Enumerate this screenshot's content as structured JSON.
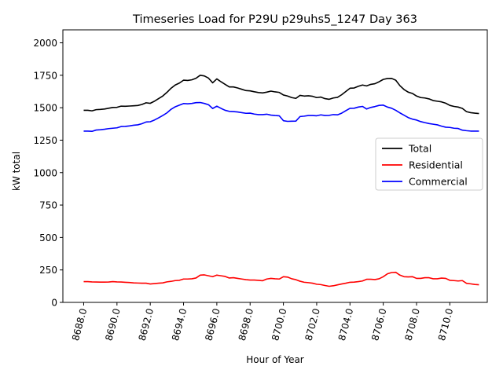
{
  "chart_data": {
    "type": "line",
    "title": "Timeseries Load for P29U p29uhs5_1247  Day 363",
    "xlabel": "Hour of Year",
    "ylabel": "kW total",
    "xlim": [
      8686.75,
      8712.25
    ],
    "ylim": [
      0,
      2100
    ],
    "x_ticks": [
      8688,
      8690,
      8692,
      8694,
      8696,
      8698,
      8700,
      8702,
      8704,
      8706,
      8708,
      8710
    ],
    "x_tick_labels": [
      "8688.0",
      "8690.0",
      "8692.0",
      "8694.0",
      "8696.0",
      "8698.0",
      "8700.0",
      "8702.0",
      "8704.0",
      "8706.0",
      "8708.0",
      "8710.0"
    ],
    "y_ticks": [
      0,
      250,
      500,
      750,
      1000,
      1250,
      1500,
      1750,
      2000
    ],
    "y_tick_labels": [
      "0",
      "250",
      "500",
      "750",
      "1000",
      "1250",
      "1500",
      "1750",
      "2000"
    ],
    "grid": false,
    "legend_position": "center-right",
    "x": [
      8688.0,
      8688.25,
      8688.5,
      8688.75,
      8689.0,
      8689.25,
      8689.5,
      8689.75,
      8690.0,
      8690.25,
      8690.5,
      8690.75,
      8691.0,
      8691.25,
      8691.5,
      8691.75,
      8692.0,
      8692.25,
      8692.5,
      8692.75,
      8693.0,
      8693.25,
      8693.5,
      8693.75,
      8694.0,
      8694.25,
      8694.5,
      8694.75,
      8695.0,
      8695.25,
      8695.5,
      8695.75,
      8696.0,
      8696.25,
      8696.5,
      8696.75,
      8697.0,
      8697.25,
      8697.5,
      8697.75,
      8698.0,
      8698.25,
      8698.5,
      8698.75,
      8699.0,
      8699.25,
      8699.5,
      8699.75,
      8700.0,
      8700.25,
      8700.5,
      8700.75,
      8701.0,
      8701.25,
      8701.5,
      8701.75,
      8702.0,
      8702.25,
      8702.5,
      8702.75,
      8703.0,
      8703.25,
      8703.5,
      8703.75,
      8704.0,
      8704.25,
      8704.5,
      8704.75,
      8705.0,
      8705.25,
      8705.5,
      8705.75,
      8706.0,
      8706.25,
      8706.5,
      8706.75,
      8707.0,
      8707.25,
      8707.5,
      8707.75,
      8708.0,
      8708.25,
      8708.5,
      8708.75,
      8709.0,
      8709.25,
      8709.5,
      8709.75,
      8710.0,
      8710.25,
      8710.5,
      8710.75,
      8711.0,
      8711.25,
      8711.5,
      8711.75
    ],
    "series": [
      {
        "name": "Total",
        "color": "#000000",
        "values": [
          1480,
          1480,
          1476,
          1485,
          1487,
          1490,
          1496,
          1502,
          1503,
          1512,
          1511,
          1513,
          1515,
          1517,
          1525,
          1538,
          1534,
          1550,
          1570,
          1590,
          1618,
          1650,
          1675,
          1690,
          1712,
          1710,
          1715,
          1727,
          1750,
          1745,
          1728,
          1692,
          1722,
          1700,
          1680,
          1660,
          1660,
          1652,
          1642,
          1632,
          1630,
          1623,
          1617,
          1614,
          1620,
          1628,
          1622,
          1618,
          1598,
          1590,
          1578,
          1572,
          1595,
          1590,
          1592,
          1588,
          1578,
          1582,
          1570,
          1565,
          1575,
          1580,
          1600,
          1625,
          1650,
          1652,
          1665,
          1675,
          1668,
          1680,
          1685,
          1700,
          1718,
          1725,
          1726,
          1712,
          1670,
          1640,
          1620,
          1610,
          1590,
          1578,
          1575,
          1568,
          1555,
          1550,
          1545,
          1535,
          1518,
          1510,
          1505,
          1495,
          1470,
          1462,
          1458,
          1455
        ]
      },
      {
        "name": "Residential",
        "color": "#ff0000",
        "values": [
          160,
          160,
          158,
          157,
          156,
          156,
          157,
          160,
          158,
          157,
          155,
          153,
          150,
          149,
          148,
          148,
          142,
          145,
          148,
          150,
          158,
          162,
          168,
          170,
          180,
          180,
          182,
          188,
          210,
          212,
          205,
          198,
          210,
          205,
          200,
          188,
          190,
          185,
          180,
          175,
          172,
          172,
          170,
          167,
          180,
          185,
          182,
          180,
          198,
          195,
          182,
          175,
          163,
          155,
          152,
          148,
          140,
          137,
          130,
          124,
          128,
          135,
          142,
          148,
          155,
          156,
          160,
          165,
          178,
          178,
          176,
          182,
          198,
          220,
          230,
          232,
          210,
          198,
          196,
          198,
          185,
          185,
          190,
          190,
          182,
          182,
          187,
          185,
          170,
          168,
          165,
          168,
          147,
          143,
          138,
          136
        ]
      },
      {
        "name": "Commercial",
        "color": "#0000ff",
        "values": [
          1320,
          1320,
          1318,
          1328,
          1330,
          1334,
          1339,
          1342,
          1345,
          1355,
          1356,
          1360,
          1365,
          1368,
          1377,
          1390,
          1392,
          1405,
          1422,
          1440,
          1460,
          1488,
          1507,
          1520,
          1532,
          1530,
          1533,
          1539,
          1540,
          1533,
          1523,
          1494,
          1512,
          1495,
          1480,
          1472,
          1470,
          1467,
          1462,
          1457,
          1458,
          1451,
          1447,
          1447,
          1450,
          1443,
          1440,
          1438,
          1400,
          1395,
          1396,
          1397,
          1432,
          1435,
          1440,
          1440,
          1438,
          1445,
          1440,
          1441,
          1447,
          1445,
          1458,
          1477,
          1495,
          1496,
          1505,
          1510,
          1490,
          1502,
          1509,
          1518,
          1520,
          1505,
          1496,
          1480,
          1460,
          1442,
          1424,
          1412,
          1405,
          1393,
          1385,
          1378,
          1373,
          1368,
          1358,
          1350,
          1348,
          1342,
          1340,
          1327,
          1323,
          1320,
          1320,
          1320
        ]
      }
    ]
  }
}
